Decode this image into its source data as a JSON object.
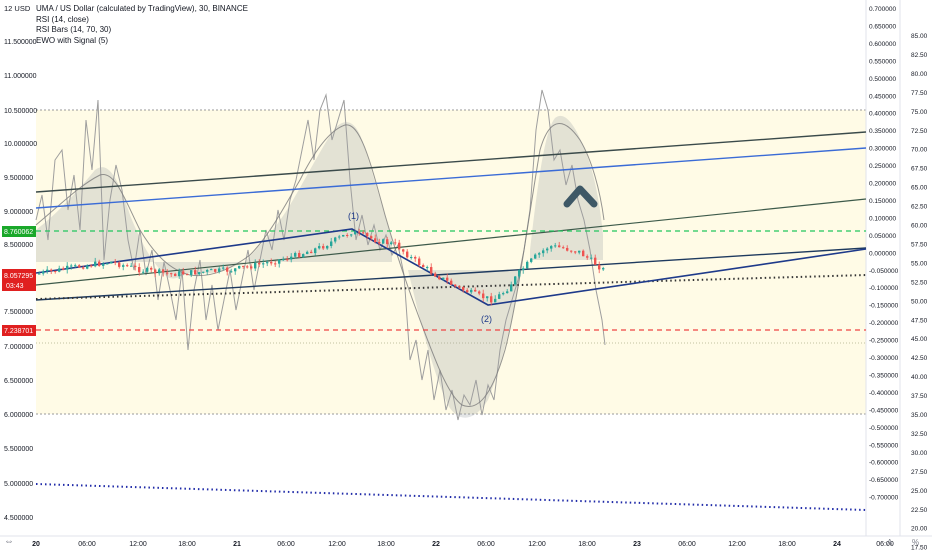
{
  "top_left_label": "12 USD",
  "legend": {
    "title": "UMA / US Dollar (calculated by TradingView), 30, BINANCE",
    "indicators": [
      "RSI (14, close)",
      "RSI Bars (14, 70, 30)",
      "EWO with Signal (5)"
    ]
  },
  "price_axis": {
    "labels": [
      "11.500000",
      "11.000000",
      "10.500000",
      "10.000000",
      "9.500000",
      "9.000000",
      "8.500000",
      "7.500000",
      "7.000000",
      "6.500000",
      "6.000000",
      "5.500000",
      "5.000000",
      "4.500000"
    ],
    "tags": {
      "green": {
        "value": "8.760062",
        "color": "#1aa82a"
      },
      "current": {
        "value": "8.057295",
        "countdown": "03:43",
        "color": "#e02020"
      },
      "red": {
        "value": "7.238701",
        "color": "#e02020"
      }
    }
  },
  "ewo_axis": {
    "labels": [
      "0.700000",
      "0.650000",
      "0.600000",
      "0.550000",
      "0.500000",
      "0.450000",
      "0.400000",
      "0.350000",
      "0.300000",
      "0.250000",
      "0.200000",
      "0.150000",
      "0.100000",
      "0.050000",
      "0.000000",
      "-0.050000",
      "-0.100000",
      "-0.150000",
      "-0.200000",
      "-0.250000",
      "-0.300000",
      "-0.350000",
      "-0.400000",
      "-0.450000",
      "-0.500000",
      "-0.550000",
      "-0.600000",
      "-0.650000",
      "-0.700000"
    ]
  },
  "rsi_axis": {
    "labels": [
      "85.00",
      "82.50",
      "80.00",
      "77.50",
      "75.00",
      "72.50",
      "70.00",
      "67.50",
      "65.00",
      "62.50",
      "60.00",
      "57.50",
      "55.00",
      "52.50",
      "50.00",
      "47.50",
      "45.00",
      "42.50",
      "40.00",
      "37.50",
      "35.00",
      "32.50",
      "30.00",
      "27.50",
      "25.00",
      "22.50",
      "20.00",
      "17.50"
    ]
  },
  "time_axis": {
    "labels": [
      "20",
      "06:00",
      "12:00",
      "18:00",
      "21",
      "06:00",
      "12:00",
      "18:00",
      "22",
      "06:00",
      "12:00",
      "18:00",
      "23",
      "06:00",
      "12:00",
      "18:00",
      "24",
      "06:00"
    ]
  },
  "annotations": {
    "wave1": "(1)",
    "wave2": "(2)"
  },
  "corner": {
    "auto": "A",
    "percent": "%"
  },
  "colors": {
    "up": "#26a69a",
    "down": "#ef5350",
    "band": "#fffbe6",
    "trend_dark": "#1e3a5f",
    "trend_blue": "#3a6bd6",
    "trend_gray": "#3d5a4a",
    "green_line": "#22c55e",
    "red_line": "#ef4444",
    "dotted_black": "#333333",
    "dotted_blue": "#1f2aa8"
  }
}
